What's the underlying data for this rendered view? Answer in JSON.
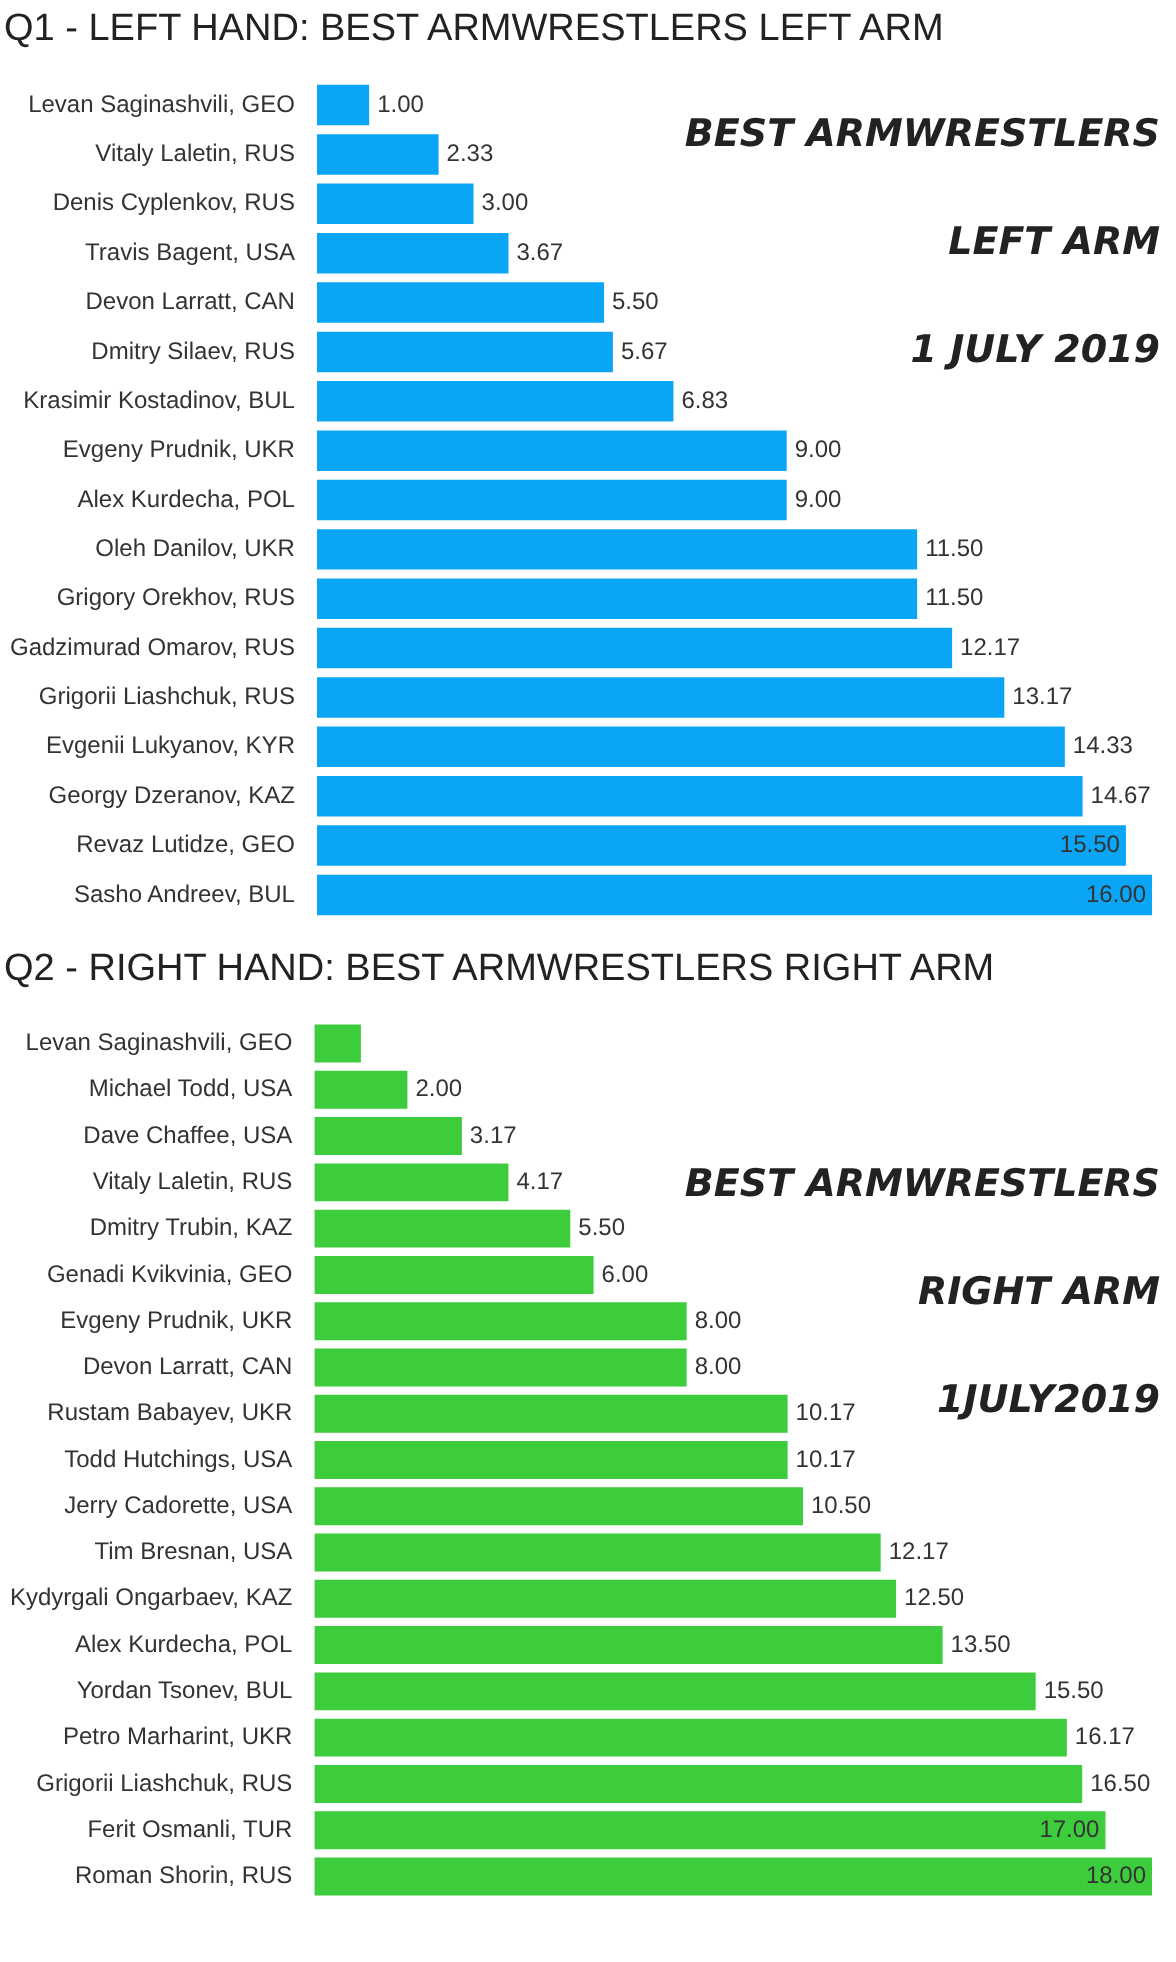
{
  "chart_data": [
    {
      "type": "bar",
      "orientation": "horizontal",
      "title": "Q1 - LEFT HAND: BEST ARMWRESTLERS LEFT ARM",
      "categories": [
        "Levan Saginashvili, GEO",
        "Vitaly Laletin, RUS",
        "Denis Cyplenkov, RUS",
        "Travis Bagent, USA",
        "Devon Larratt, CAN",
        "Dmitry Silaev, RUS",
        "Krasimir Kostadinov, BUL",
        "Evgeny Prudnik, UKR",
        "Alex Kurdecha, POL",
        "Oleh Danilov, UKR",
        "Grigory Orekhov, RUS",
        "Gadzimurad Omarov, RUS",
        "Grigorii Liashchuk, RUS",
        "Evgenii Lukyanov, KYR",
        "Georgy Dzeranov, KAZ",
        "Revaz Lutidze, GEO",
        "Sasho Andreev, BUL"
      ],
      "values": [
        1.0,
        2.33,
        3.0,
        3.67,
        5.5,
        5.67,
        6.83,
        9.0,
        9.0,
        11.5,
        11.5,
        12.17,
        13.17,
        14.33,
        14.67,
        15.5,
        16.0
      ],
      "value_labels": [
        "1.00",
        "2.33",
        "3.00",
        "3.67",
        "5.50",
        "5.67",
        "6.83",
        "9.00",
        "9.00",
        "11.50",
        "11.50",
        "12.17",
        "13.17",
        "14.33",
        "14.67",
        "15.50",
        "16.00"
      ],
      "color": "#0aa5f5",
      "annotations": [
        "BEST ARMWRESTLERS",
        "LEFT ARM",
        "1 JULY 2019"
      ]
    },
    {
      "type": "bar",
      "orientation": "horizontal",
      "title": "Q2 - RIGHT HAND: BEST ARMWRESTLERS RIGHT ARM",
      "categories": [
        "Levan Saginashvili, GEO",
        "Michael Todd, USA",
        "Dave Chaffee, USA",
        "Vitaly Laletin, RUS",
        "Dmitry Trubin, KAZ",
        "Genadi Kvikvinia, GEO",
        "Evgeny Prudnik, UKR",
        "Devon Larratt, CAN",
        "Rustam Babayev, UKR",
        "Todd Hutchings, USA",
        "Jerry Cadorette, USA",
        "Tim Bresnan, USA",
        "Kydyrgali Ongarbaev, KAZ",
        "Alex Kurdecha, POL",
        "Yordan Tsonev, BUL",
        "Petro Marharint, UKR",
        "Grigorii Liashchuk, RUS",
        "Ferit Osmanli, TUR",
        "Roman Shorin, RUS"
      ],
      "values": [
        1,
        2.0,
        3.17,
        4.17,
        5.5,
        6.0,
        8.0,
        8.0,
        10.17,
        10.17,
        10.5,
        12.17,
        12.5,
        13.5,
        15.5,
        16.17,
        16.5,
        17.0,
        18.0
      ],
      "value_labels": [
        null,
        "2.00",
        "3.17",
        "4.17",
        "5.50",
        "6.00",
        "8.00",
        "8.00",
        "10.17",
        "10.17",
        "10.50",
        "12.17",
        "12.50",
        "13.50",
        "15.50",
        "16.17",
        "16.50",
        "17.00",
        "18.00"
      ],
      "color": "#3ccc3c",
      "annotations": [
        "BEST ARMWRESTLERS",
        "RIGHT ARM",
        "1JULY2019"
      ]
    }
  ]
}
